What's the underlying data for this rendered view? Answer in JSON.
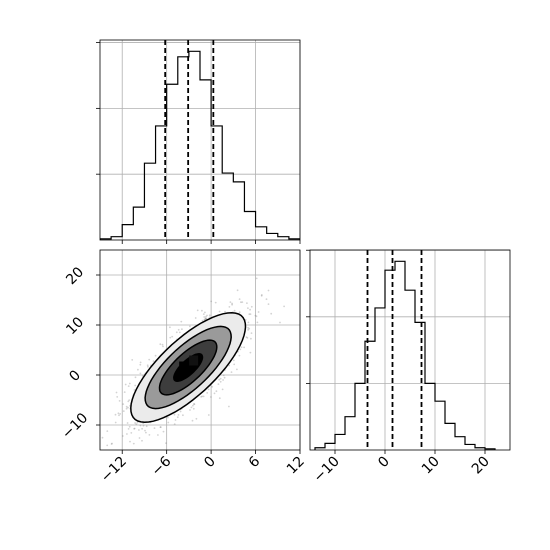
{
  "chart_data": [
    {
      "type": "histogram",
      "panel": "top-left",
      "variable_index": 0,
      "xlim": [
        -15,
        12
      ],
      "grid": true,
      "bins": [
        -15.0,
        -13.5,
        -12.0,
        -10.5,
        -9.0,
        -7.5,
        -6.0,
        -4.5,
        -3.0,
        -1.5,
        0.0,
        1.5,
        3.0,
        4.5,
        6.0,
        7.5,
        9.0,
        10.5,
        12.0
      ],
      "counts": [
        1,
        3,
        14,
        30,
        70,
        104,
        142,
        167,
        172,
        146,
        104,
        61,
        53,
        26,
        12,
        6,
        3,
        1
      ],
      "quantiles": [
        -6.2,
        -3.1,
        0.3
      ],
      "x_ticks": [
        -12,
        -6,
        0,
        6,
        12
      ]
    },
    {
      "type": "scatter-contour",
      "panel": "bottom-left",
      "xlim": [
        -15,
        12
      ],
      "ylim": [
        -15,
        25
      ],
      "grid": true,
      "x_ticks": [
        -12,
        -6,
        0,
        6,
        12
      ],
      "y_ticks": [
        -10,
        0,
        10,
        20
      ],
      "mean": [
        -3.1,
        1.5
      ],
      "cov": [
        [
          15,
          16
        ],
        [
          16,
          30
        ]
      ],
      "contour_levels_sigma": [
        0.5,
        1.0,
        1.5,
        2.0
      ],
      "contour_fills": [
        "#000000",
        "#3d3d3d",
        "#9a9a9a",
        "#ebebeb"
      ]
    },
    {
      "type": "histogram",
      "panel": "bottom-right",
      "variable_index": 1,
      "xlim": [
        -15,
        25
      ],
      "grid": true,
      "bins": [
        -14,
        -12,
        -10,
        -8,
        -6,
        -4,
        -2,
        0,
        2,
        4,
        6,
        8,
        10,
        12,
        14,
        16,
        18,
        20,
        22
      ],
      "counts": [
        2,
        6,
        14,
        30,
        60,
        98,
        128,
        162,
        170,
        144,
        115,
        60,
        44,
        24,
        12,
        5,
        2,
        1
      ],
      "quantiles": [
        -3.5,
        1.5,
        7.3
      ],
      "x_ticks": [
        -10,
        0,
        10,
        20
      ]
    }
  ]
}
